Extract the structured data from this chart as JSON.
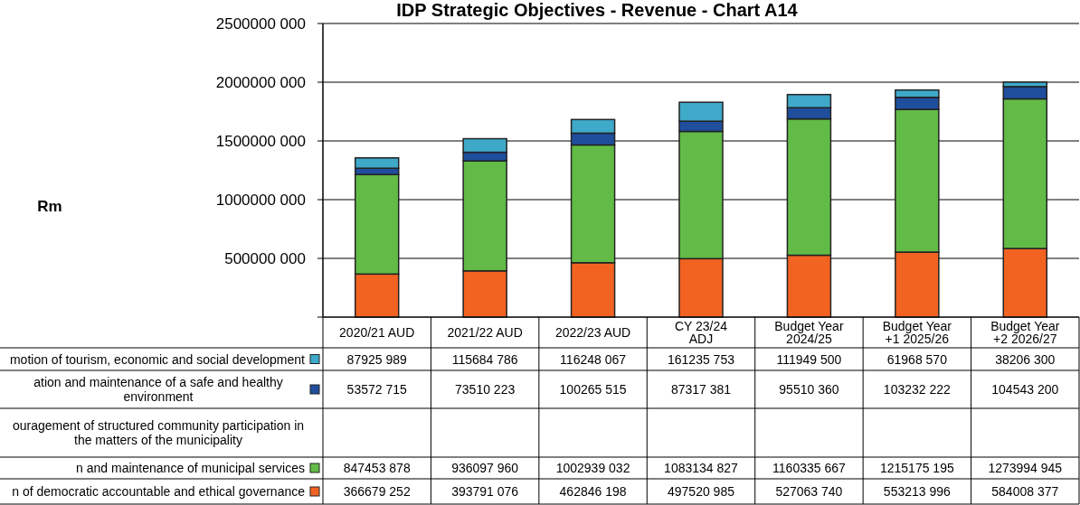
{
  "chart_data": {
    "type": "bar",
    "title": "IDP Strategic Objectives - Revenue - Chart A14",
    "annotations": [
      "Rm"
    ],
    "stacked": true,
    "legend": "bottom",
    "grid": "y",
    "categories": [
      "2020/21 AUD",
      "2021/22 AUD",
      "2022/23 AUD",
      "CY  23/24\nADJ",
      "Budget Year\n2024/25",
      "Budget Year\n+1 2025/26",
      "Budget Year\n+2 2026/27"
    ],
    "ylim": [
      0,
      2500000000
    ],
    "yticks": [
      {
        "value": 0,
        "label": null
      },
      {
        "value": 500000000,
        "label": "500000 000"
      },
      {
        "value": 1000000000,
        "label": "1000000 000"
      },
      {
        "value": 1500000000,
        "label": "1500000 000"
      },
      {
        "value": 2000000000,
        "label": "2000000 000"
      },
      {
        "value": 2500000000,
        "label": "2500000 000"
      }
    ],
    "series": [
      {
        "name": "n of democratic accountable and ethical governance",
        "color": "#f26322",
        "values": [
          366679252,
          393791076,
          462846198,
          497520985,
          527063740,
          553213996,
          584008377
        ],
        "value_labels": [
          "366679 252",
          "393791 076",
          "462846 198",
          "497520 985",
          "527063 740",
          "553213 996",
          "584008 377"
        ]
      },
      {
        "name": "n and maintenance of municipal services",
        "color": "#62bb46",
        "values": [
          847453878,
          936097960,
          1002939032,
          1083134827,
          1160335667,
          1215175195,
          1273994945
        ],
        "value_labels": [
          "847453 878",
          "936097 960",
          "1002939 032",
          "1083134 827",
          "1160335 667",
          "1215175 195",
          "1273994 945"
        ]
      },
      {
        "name": "ouragement of structured community participation in\nthe matters of the municipality",
        "values": [
          null,
          null,
          null,
          null,
          null,
          null,
          null
        ],
        "value_labels": [
          null,
          null,
          null,
          null,
          null,
          null,
          null
        ]
      },
      {
        "name": "ation and maintenance of a safe and healthy\nenvironment",
        "color": "#1f4e9c",
        "values": [
          53572715,
          73510223,
          100265515,
          87317381,
          95510360,
          103232222,
          104543200
        ],
        "value_labels": [
          "53572 715",
          "73510 223",
          "100265 515",
          "87317 381",
          "95510 360",
          "103232 222",
          "104543 200"
        ]
      },
      {
        "name": "motion of tourism, economic and social development",
        "color": "#3fa9c9",
        "values": [
          87925989,
          115684786,
          116248067,
          161235753,
          111949500,
          61968570,
          38206300
        ],
        "value_labels": [
          "87925 989",
          "115684 786",
          "116248 067",
          "161235 753",
          "111949 500",
          "61968 570",
          "38206 300"
        ]
      }
    ]
  }
}
